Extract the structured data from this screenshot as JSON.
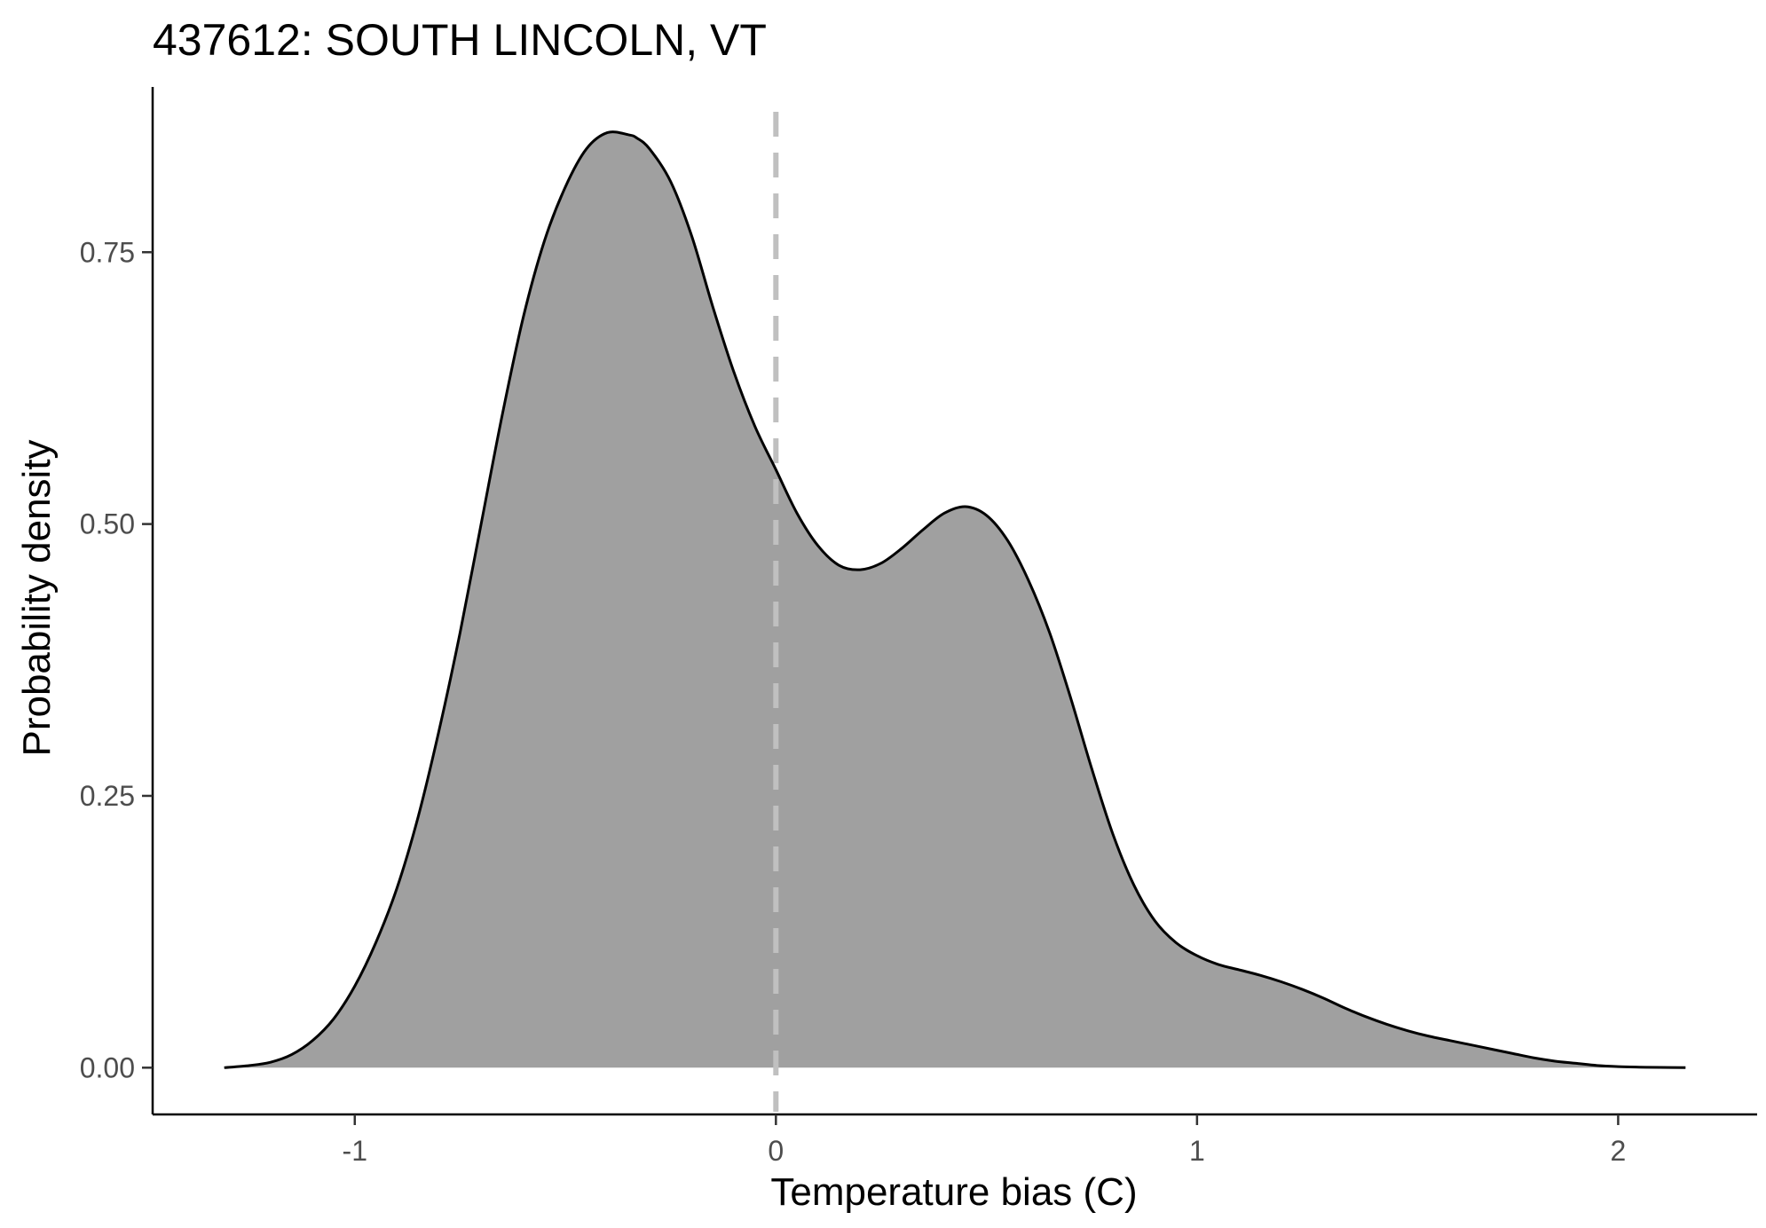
{
  "chart_data": {
    "type": "area",
    "title": "437612: SOUTH LINCOLN, VT",
    "xlabel": "Temperature bias (C)",
    "ylabel": "Probability density",
    "xlim": [
      -1.48,
      2.33
    ],
    "ylim": [
      -0.043,
      0.902
    ],
    "x_ticks": [
      -1,
      0,
      1,
      2
    ],
    "x_tick_labels": [
      "-1",
      "0",
      "1",
      "2"
    ],
    "y_ticks": [
      0,
      0.25,
      0.5,
      0.75
    ],
    "y_tick_labels": [
      "0.00",
      "0.25",
      "0.50",
      "0.75"
    ],
    "grid": false,
    "legend": "none",
    "reference_line": {
      "x": 0,
      "style": "dashed",
      "color": "#c0c0c0"
    },
    "fill_color": "#a0a0a0",
    "line_color": "#000000",
    "series": [
      {
        "x": [
          -1.31,
          -1.25,
          -1.2,
          -1.15,
          -1.1,
          -1.05,
          -1.0,
          -0.95,
          -0.9,
          -0.85,
          -0.8,
          -0.75,
          -0.7,
          -0.65,
          -0.6,
          -0.55,
          -0.5,
          -0.45,
          -0.4,
          -0.35,
          -0.33,
          -0.3,
          -0.25,
          -0.2,
          -0.15,
          -0.1,
          -0.05,
          0.0,
          0.05,
          0.1,
          0.15,
          0.2,
          0.25,
          0.3,
          0.35,
          0.4,
          0.45,
          0.5,
          0.55,
          0.6,
          0.65,
          0.7,
          0.75,
          0.8,
          0.85,
          0.9,
          0.95,
          1.0,
          1.05,
          1.1,
          1.15,
          1.2,
          1.25,
          1.3,
          1.35,
          1.4,
          1.45,
          1.5,
          1.55,
          1.6,
          1.65,
          1.7,
          1.75,
          1.8,
          1.85,
          1.9,
          1.95,
          2.0,
          2.05,
          2.1,
          2.16
        ],
        "y": [
          0.0,
          0.002,
          0.005,
          0.012,
          0.025,
          0.045,
          0.075,
          0.115,
          0.165,
          0.23,
          0.31,
          0.4,
          0.5,
          0.6,
          0.69,
          0.76,
          0.81,
          0.845,
          0.86,
          0.858,
          0.855,
          0.845,
          0.815,
          0.765,
          0.7,
          0.64,
          0.59,
          0.55,
          0.51,
          0.48,
          0.462,
          0.458,
          0.464,
          0.478,
          0.495,
          0.51,
          0.516,
          0.508,
          0.485,
          0.448,
          0.4,
          0.34,
          0.275,
          0.215,
          0.168,
          0.135,
          0.115,
          0.103,
          0.095,
          0.09,
          0.085,
          0.079,
          0.072,
          0.064,
          0.055,
          0.047,
          0.04,
          0.034,
          0.029,
          0.025,
          0.021,
          0.017,
          0.013,
          0.009,
          0.006,
          0.004,
          0.002,
          0.001,
          0.0005,
          0.0002,
          0.0
        ]
      }
    ]
  }
}
